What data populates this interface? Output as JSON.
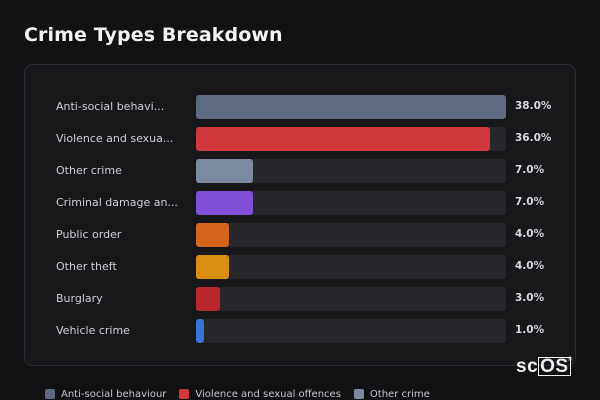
{
  "chart_data": {
    "type": "bar",
    "orientation": "horizontal",
    "title": "Crime Types Breakdown",
    "categories": [
      "Anti-social behavi...",
      "Violence and sexua...",
      "Other crime",
      "Criminal damage an...",
      "Public order",
      "Other theft",
      "Burglary",
      "Vehicle crime"
    ],
    "values": [
      38.0,
      36.0,
      7.0,
      7.0,
      4.0,
      4.0,
      3.0,
      1.0
    ],
    "value_labels": [
      "38.0%",
      "36.0%",
      "7.0%",
      "7.0%",
      "4.0%",
      "4.0%",
      "3.0%",
      "1.0%"
    ],
    "colors": [
      "#5e6a80",
      "#d0393c",
      "#7b8a9e",
      "#7f4fd6",
      "#d4651d",
      "#d98e14",
      "#b9262b",
      "#3a74d6"
    ],
    "max_value": 38.0,
    "legend": [
      {
        "label": "Anti-social behaviour",
        "color": "#5e6a80"
      },
      {
        "label": "Violence and sexual offences",
        "color": "#d0393c"
      },
      {
        "label": "Other crime",
        "color": "#7b8a9e"
      }
    ],
    "legend_position": "bottom",
    "grid": false
  },
  "branding": {
    "logo_prefix": "sc",
    "logo_boxed": "OS",
    "logo_mark": "®"
  }
}
